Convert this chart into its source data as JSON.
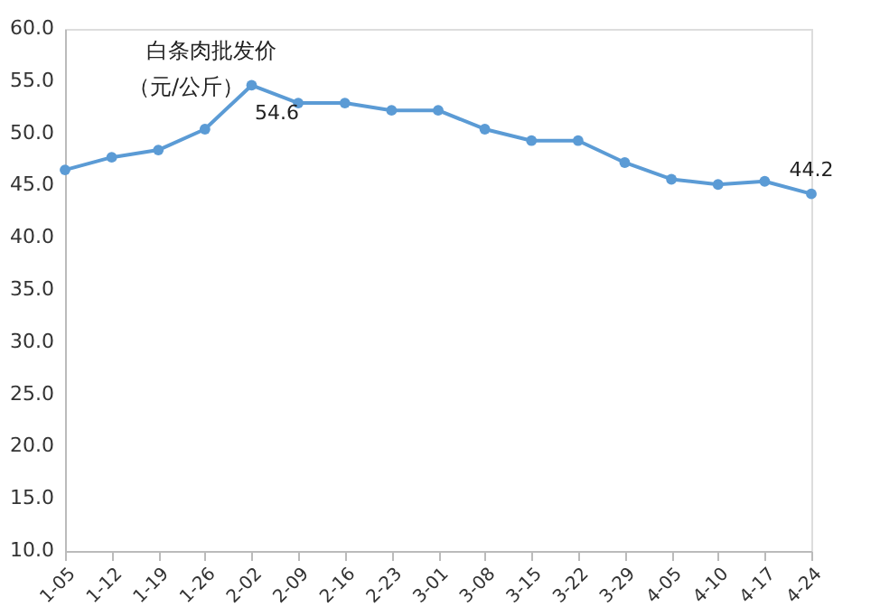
{
  "chart_data": {
    "type": "line",
    "title": "白条肉批发价",
    "subtitle": "（元/公斤）",
    "categories": [
      "1-05",
      "1-12",
      "1-19",
      "1-26",
      "2-02",
      "2-09",
      "2-16",
      "2-23",
      "3-01",
      "3-08",
      "3-15",
      "3-22",
      "3-29",
      "4-05",
      "4-10",
      "4-17",
      "4-24"
    ],
    "series": [
      {
        "color": "#5b9bd5",
        "values": [
          46.5,
          47.7,
          48.4,
          50.4,
          54.6,
          52.9,
          52.9,
          52.2,
          52.2,
          50.4,
          49.3,
          49.3,
          47.2,
          45.6,
          45.1,
          45.4,
          44.2
        ],
        "value_labels": [
          null,
          null,
          null,
          null,
          "54.6",
          null,
          null,
          null,
          null,
          null,
          null,
          null,
          null,
          null,
          null,
          null,
          "44.2"
        ]
      }
    ],
    "ylim": [
      10,
      60
    ],
    "yticks": [
      {
        "value": 10,
        "label": "10.0"
      },
      {
        "value": 15,
        "label": "15.0"
      },
      {
        "value": 20,
        "label": "20.0"
      },
      {
        "value": 25,
        "label": "25.0"
      },
      {
        "value": 30,
        "label": "30.0"
      },
      {
        "value": 35,
        "label": "35.0"
      },
      {
        "value": 40,
        "label": "40.0"
      },
      {
        "value": 45,
        "label": "45.0"
      },
      {
        "value": 50,
        "label": "50.0"
      },
      {
        "value": 55,
        "label": "55.0"
      },
      {
        "value": 60,
        "label": "60.0"
      }
    ],
    "grid": false,
    "marker": "circle",
    "line_style": "solid"
  }
}
